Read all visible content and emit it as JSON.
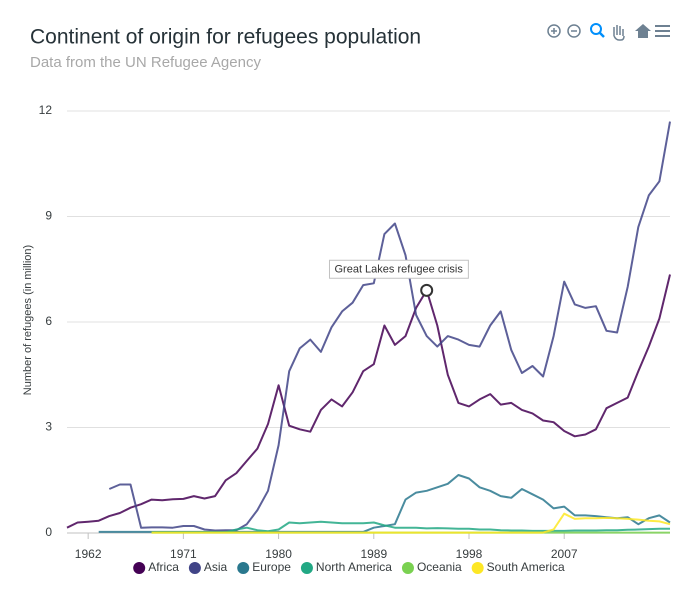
{
  "chart_data": {
    "type": "line",
    "title": "Continent of origin for refugees population",
    "subtitle": "Data from the UN Refugee Agency",
    "y_label": "Number of refugees (in million)",
    "x": [
      1960,
      1961,
      1962,
      1963,
      1964,
      1965,
      1966,
      1967,
      1968,
      1969,
      1970,
      1971,
      1972,
      1973,
      1974,
      1975,
      1976,
      1977,
      1978,
      1979,
      1980,
      1981,
      1982,
      1983,
      1984,
      1985,
      1986,
      1987,
      1988,
      1989,
      1990,
      1991,
      1992,
      1993,
      1994,
      1995,
      1996,
      1997,
      1998,
      1999,
      2000,
      2001,
      2002,
      2003,
      2004,
      2005,
      2006,
      2007,
      2008,
      2009,
      2010,
      2011,
      2012,
      2013,
      2014,
      2015,
      2016,
      2017
    ],
    "xlim": [
      1960,
      2017
    ],
    "xticks": [
      1962,
      1971,
      1980,
      1989,
      1998,
      2007
    ],
    "ylim": [
      0,
      12
    ],
    "yticks": [
      0,
      3,
      6,
      9,
      12
    ],
    "grid": true,
    "legend": "bottom",
    "series": [
      {
        "name": "Africa",
        "color": "#440154",
        "values": [
          0.15,
          0.3,
          0.32,
          0.35,
          0.48,
          0.57,
          0.72,
          0.82,
          0.95,
          0.93,
          0.96,
          0.97,
          1.05,
          0.98,
          1.05,
          1.5,
          1.7,
          2.05,
          2.4,
          3.1,
          4.2,
          3.05,
          2.95,
          2.88,
          3.5,
          3.8,
          3.6,
          4.0,
          4.6,
          4.8,
          5.9,
          5.35,
          5.6,
          6.4,
          6.9,
          5.9,
          4.5,
          3.7,
          3.6,
          3.8,
          3.95,
          3.65,
          3.7,
          3.5,
          3.4,
          3.2,
          3.15,
          2.9,
          2.75,
          2.8,
          2.95,
          3.55,
          3.7,
          3.85,
          4.6,
          5.3,
          6.1,
          7.35
        ]
      },
      {
        "name": "Asia",
        "color": "#414487",
        "values": [
          null,
          null,
          null,
          null,
          1.25,
          1.38,
          1.38,
          0.15,
          0.16,
          0.16,
          0.15,
          0.2,
          0.2,
          0.1,
          0.07,
          0.08,
          0.08,
          0.25,
          0.65,
          1.2,
          2.5,
          4.6,
          5.25,
          5.5,
          5.15,
          5.85,
          6.3,
          6.55,
          7.05,
          7.1,
          8.5,
          8.8,
          7.9,
          6.2,
          5.6,
          5.3,
          5.6,
          5.5,
          5.35,
          5.3,
          5.9,
          6.3,
          5.2,
          4.55,
          4.75,
          4.45,
          5.6,
          7.15,
          6.5,
          6.4,
          6.45,
          5.75,
          5.7,
          7.0,
          8.7,
          9.6,
          10.0,
          11.7
        ]
      },
      {
        "name": "Europe",
        "color": "#2a788e",
        "values": [
          null,
          null,
          null,
          0.03,
          0.03,
          0.03,
          0.03,
          0.03,
          0.03,
          0.03,
          0.03,
          0.03,
          0.03,
          0.03,
          0.03,
          0.03,
          0.03,
          0.03,
          0.03,
          0.03,
          0.03,
          0.03,
          0.03,
          0.03,
          0.03,
          0.03,
          0.03,
          0.03,
          0.03,
          0.15,
          0.2,
          0.25,
          0.95,
          1.15,
          1.2,
          1.3,
          1.4,
          1.65,
          1.55,
          1.3,
          1.2,
          1.05,
          1.0,
          1.25,
          1.1,
          0.95,
          0.7,
          0.75,
          0.5,
          0.5,
          0.48,
          0.45,
          0.42,
          0.45,
          0.25,
          0.42,
          0.5,
          0.3
        ]
      },
      {
        "name": "North America",
        "color": "#22a884",
        "values": [
          null,
          null,
          null,
          null,
          null,
          null,
          null,
          null,
          0.02,
          0.02,
          0.02,
          0.02,
          0.02,
          0.02,
          0.02,
          0.02,
          0.1,
          0.15,
          0.08,
          0.05,
          0.1,
          0.3,
          0.28,
          0.3,
          0.32,
          0.3,
          0.28,
          0.28,
          0.28,
          0.3,
          0.22,
          0.15,
          0.15,
          0.15,
          0.13,
          0.14,
          0.13,
          0.12,
          0.12,
          0.1,
          0.1,
          0.08,
          0.07,
          0.07,
          0.06,
          0.06,
          0.06,
          0.06,
          0.07,
          0.07,
          0.07,
          0.08,
          0.08,
          0.09,
          0.1,
          0.11,
          0.12,
          0.12
        ]
      },
      {
        "name": "Oceania",
        "color": "#7ad151",
        "values": [
          null,
          null,
          null,
          null,
          null,
          null,
          null,
          null,
          0.01,
          0.01,
          0.01,
          0.01,
          0.01,
          0.01,
          0.01,
          0.01,
          0.01,
          0.01,
          0.01,
          0.01,
          0.01,
          0.01,
          0.01,
          0.01,
          0.01,
          0.01,
          0.01,
          0.01,
          0.01,
          0.01,
          0.01,
          0.01,
          0.01,
          0.01,
          0.01,
          0.01,
          0.01,
          0.01,
          0.01,
          0.01,
          0.01,
          0.01,
          0.01,
          0.01,
          0.01,
          0.01,
          0.01,
          0.01,
          0.01,
          0.01,
          0.01,
          0.01,
          0.01,
          0.01,
          0.01,
          0.01,
          0.01,
          0.01
        ]
      },
      {
        "name": "South America",
        "color": "#fde725",
        "values": [
          null,
          null,
          null,
          null,
          null,
          null,
          null,
          null,
          0.01,
          0.01,
          0.01,
          0.01,
          0.01,
          0.01,
          0.01,
          0.01,
          0.01,
          0.01,
          0.01,
          0.01,
          0.01,
          0.01,
          0.01,
          0.01,
          0.01,
          0.01,
          0.01,
          0.01,
          0.01,
          0.01,
          0.01,
          0.01,
          0.01,
          0.01,
          0.01,
          0.01,
          0.01,
          0.01,
          0.01,
          0.01,
          0.01,
          0.01,
          0.01,
          0.01,
          0.01,
          0.01,
          0.1,
          0.55,
          0.4,
          0.42,
          0.42,
          0.43,
          0.42,
          0.4,
          0.38,
          0.35,
          0.33,
          0.25
        ]
      }
    ],
    "annotations": [
      {
        "text": "Great Lakes refugee crisis",
        "x": 1994,
        "y": 6.9
      }
    ]
  }
}
